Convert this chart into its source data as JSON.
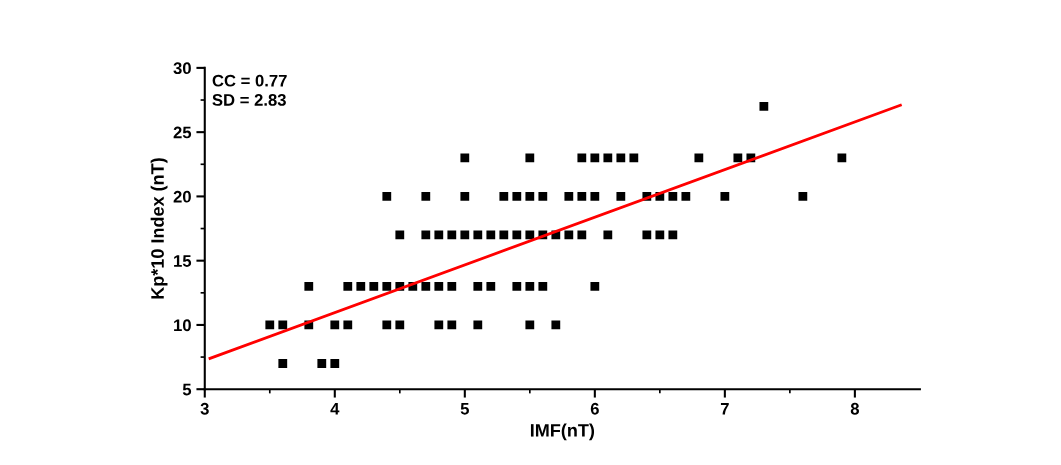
{
  "chart_data": {
    "type": "scatter",
    "xlabel": "IMF(nT)",
    "ylabel": "Kp*10 Index (nT)",
    "xlim": [
      3,
      8.5
    ],
    "ylim": [
      5,
      30
    ],
    "xticks": [
      3,
      {
        "value": 3.5,
        "label": null
      },
      4,
      {
        "value": 4.5,
        "label": null
      },
      5,
      {
        "value": 5.5,
        "label": null
      },
      6,
      {
        "value": 6.5,
        "label": null
      },
      7,
      {
        "value": 7.5,
        "label": null
      },
      8
    ],
    "yticks": [
      5,
      {
        "value": 7.5,
        "label": null
      },
      10,
      {
        "value": 12.5,
        "label": null
      },
      15,
      {
        "value": 17.5,
        "label": null
      },
      20,
      {
        "value": 22.5,
        "label": null
      },
      25,
      {
        "value": 27.5,
        "label": null
      },
      30
    ],
    "grid": false,
    "legend": false,
    "annotations": [
      "CC = 0.77",
      "SD = 2.83"
    ],
    "series": [
      {
        "color": "#000000",
        "marker": "square",
        "x": [
          3.6,
          3.9,
          4.0,
          3.5,
          3.6,
          3.8,
          4.0,
          4.1,
          4.4,
          4.5,
          4.8,
          4.9,
          5.1,
          5.5,
          5.7,
          3.8,
          4.1,
          4.2,
          4.3,
          4.4,
          4.5,
          4.6,
          4.7,
          4.8,
          4.9,
          5.1,
          5.2,
          5.4,
          5.5,
          5.6,
          6.0,
          4.5,
          4.7,
          4.8,
          4.9,
          5.0,
          5.1,
          5.2,
          5.3,
          5.4,
          5.5,
          5.6,
          5.7,
          5.8,
          5.9,
          6.1,
          6.4,
          6.5,
          6.6,
          4.4,
          4.7,
          5.0,
          5.3,
          5.4,
          5.5,
          5.6,
          5.8,
          5.9,
          6.0,
          6.2,
          6.4,
          6.5,
          6.6,
          6.7,
          7.0,
          7.6,
          5.0,
          5.5,
          5.9,
          6.0,
          6.1,
          6.2,
          6.3,
          6.8,
          7.1,
          7.2,
          7.9,
          7.3
        ],
        "values": [
          7,
          7,
          7,
          10,
          10,
          10,
          10,
          10,
          10,
          10,
          10,
          10,
          10,
          10,
          10,
          13,
          13,
          13,
          13,
          13,
          13,
          13,
          13,
          13,
          13,
          13,
          13,
          13,
          13,
          13,
          13,
          17,
          17,
          17,
          17,
          17,
          17,
          17,
          17,
          17,
          17,
          17,
          17,
          17,
          17,
          17,
          17,
          17,
          17,
          20,
          20,
          20,
          20,
          20,
          20,
          20,
          20,
          20,
          20,
          20,
          20,
          20,
          20,
          20,
          20,
          20,
          23,
          23,
          23,
          23,
          23,
          23,
          23,
          23,
          23,
          23,
          23,
          27
        ]
      },
      {
        "type": "line",
        "color": "#ff0000",
        "line_style": "solid",
        "marker": "none",
        "x": [
          3.04,
          8.35
        ],
        "values": [
          7.4,
          27.1
        ]
      }
    ]
  }
}
